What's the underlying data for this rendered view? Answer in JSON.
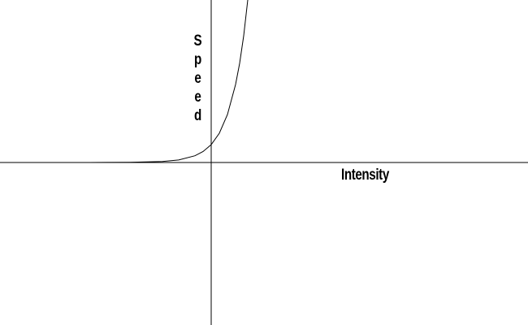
{
  "chart_data": {
    "type": "line",
    "x_label": "Intensity",
    "y_label": "Speed",
    "x": [
      -2.6,
      -1.5,
      -1,
      -0.6,
      -0.4,
      -0.2,
      -0.1,
      0,
      0.1,
      0.2,
      0.3,
      0.35,
      0.4,
      0.45
    ],
    "values": [
      0,
      0,
      0.002,
      0.012,
      0.031,
      0.083,
      0.135,
      0.22,
      0.36,
      0.59,
      0.96,
      1.22,
      1.56,
      2.0
    ],
    "color": "#000000",
    "xlim": [
      -2.6,
      3.9
    ],
    "ylim": [
      -2,
      2
    ]
  }
}
